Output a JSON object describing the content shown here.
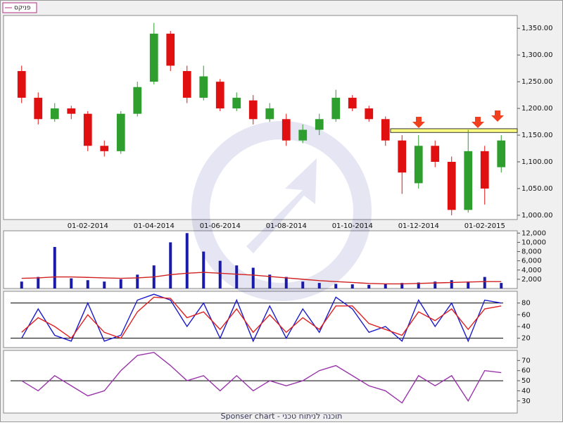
{
  "chart_data": [
    {
      "type": "candlestick",
      "categories": [
        null,
        null,
        null,
        null,
        "01-02-2014",
        null,
        null,
        null,
        "01-04-2014",
        null,
        null,
        null,
        "01-06-2014",
        null,
        null,
        null,
        "01-08-2014",
        null,
        null,
        null,
        "01-10-2014",
        null,
        null,
        null,
        "01-12-2014",
        null,
        null,
        null,
        "01-02-2015",
        null
      ],
      "series": [
        {
          "name": "פניקס",
          "up_color": "#2e9e2e",
          "down_color": "#e01010",
          "open": [
            1270,
            1220,
            1180,
            1200,
            1190,
            1130,
            1120,
            1190,
            1250,
            1340,
            1270,
            1220,
            1250,
            1200,
            1215,
            1180,
            1180,
            1140,
            1160,
            1180,
            1220,
            1200,
            1180,
            1140,
            1060,
            1130,
            1100,
            1010,
            1120,
            1090
          ],
          "high": [
            1280,
            1230,
            1210,
            1205,
            1195,
            1140,
            1195,
            1250,
            1360,
            1345,
            1280,
            1280,
            1255,
            1230,
            1225,
            1210,
            1190,
            1170,
            1190,
            1235,
            1225,
            1205,
            1185,
            1150,
            1150,
            1140,
            1110,
            1160,
            1130,
            1150
          ],
          "low": [
            1210,
            1170,
            1175,
            1180,
            1120,
            1110,
            1115,
            1185,
            1245,
            1270,
            1210,
            1215,
            1195,
            1195,
            1170,
            1175,
            1130,
            1135,
            1150,
            1175,
            1195,
            1175,
            1130,
            1040,
            1050,
            1090,
            1000,
            1005,
            1020,
            1080
          ],
          "close": [
            1220,
            1180,
            1200,
            1190,
            1130,
            1120,
            1190,
            1240,
            1340,
            1280,
            1220,
            1260,
            1200,
            1220,
            1180,
            1200,
            1140,
            1160,
            1180,
            1220,
            1200,
            1180,
            1140,
            1080,
            1130,
            1100,
            1010,
            1120,
            1050,
            1140
          ]
        }
      ],
      "resistance": {
        "values": [
          1155,
          1162
        ],
        "color": "#ffff80"
      },
      "ylim": [
        992,
        1374
      ],
      "yticks": [
        {
          "value": 1000,
          "label": "1,000.00"
        },
        {
          "value": 1050,
          "label": "1,050.00"
        },
        {
          "value": 1100,
          "label": "1,100.00"
        },
        {
          "value": 1150,
          "label": "1,150.00"
        },
        {
          "value": 1200,
          "label": "1,200.00"
        },
        {
          "value": 1250,
          "label": "1,250.00"
        },
        {
          "value": 1300,
          "label": "1,300.00"
        },
        {
          "value": 1350,
          "label": "1,350.00"
        }
      ]
    },
    {
      "type": "bar",
      "series": [
        {
          "type": "bar",
          "color": "#1a1aaa",
          "values": [
            1500,
            2500,
            9000,
            2200,
            1800,
            1500,
            2000,
            3000,
            5000,
            10000,
            12000,
            8000,
            6000,
            5000,
            4500,
            3000,
            2500,
            1500,
            1200,
            1000,
            900,
            800,
            1000,
            1200,
            1300,
            1500,
            1800,
            1500,
            2500,
            1200
          ]
        },
        {
          "type": "line",
          "color": "#d02020",
          "values": [
            2200,
            2300,
            2500,
            2500,
            2400,
            2300,
            2200,
            2300,
            2500,
            3000,
            3300,
            3500,
            3300,
            3100,
            2900,
            2600,
            2300,
            2000,
            1700,
            1500,
            1300,
            1100,
            1000,
            1000,
            1100,
            1200,
            1300,
            1400,
            1500,
            1500
          ]
        }
      ],
      "ylim": [
        0,
        12500
      ],
      "yticks": [
        {
          "value": 2000,
          "label": "2,000"
        },
        {
          "value": 4000,
          "label": "4,000"
        },
        {
          "value": 6000,
          "label": "6,000"
        },
        {
          "value": 8000,
          "label": "8,000"
        },
        {
          "value": 10000,
          "label": "10,000"
        },
        {
          "value": 12000,
          "label": "12,000"
        }
      ]
    },
    {
      "type": "line",
      "series": [
        {
          "color": "#1a1acc",
          "values": [
            20,
            70,
            25,
            15,
            80,
            15,
            25,
            85,
            95,
            85,
            40,
            80,
            20,
            85,
            15,
            75,
            20,
            70,
            30,
            90,
            70,
            30,
            40,
            15,
            85,
            40,
            80,
            15,
            85,
            80
          ]
        },
        {
          "color": "#e02020",
          "values": [
            30,
            55,
            40,
            20,
            60,
            30,
            20,
            65,
            90,
            88,
            55,
            65,
            35,
            70,
            30,
            60,
            30,
            55,
            35,
            75,
            75,
            45,
            35,
            25,
            65,
            50,
            70,
            35,
            70,
            75
          ]
        }
      ],
      "levels": [
        20,
        80
      ],
      "ylim": [
        4,
        100
      ],
      "yticks": [
        20,
        40,
        60,
        80
      ]
    },
    {
      "type": "line",
      "series": [
        {
          "color": "#9933aa",
          "values": [
            50,
            40,
            55,
            45,
            35,
            40,
            60,
            75,
            78,
            65,
            50,
            55,
            40,
            55,
            40,
            50,
            45,
            50,
            60,
            65,
            55,
            45,
            40,
            28,
            55,
            45,
            55,
            30,
            60,
            58
          ]
        }
      ],
      "levels": [
        50
      ],
      "ylim": [
        18,
        80
      ],
      "yticks": [
        30,
        40,
        50,
        60,
        70
      ]
    }
  ],
  "footer": "Sponser chart - תוכנה לניתוח טכני"
}
